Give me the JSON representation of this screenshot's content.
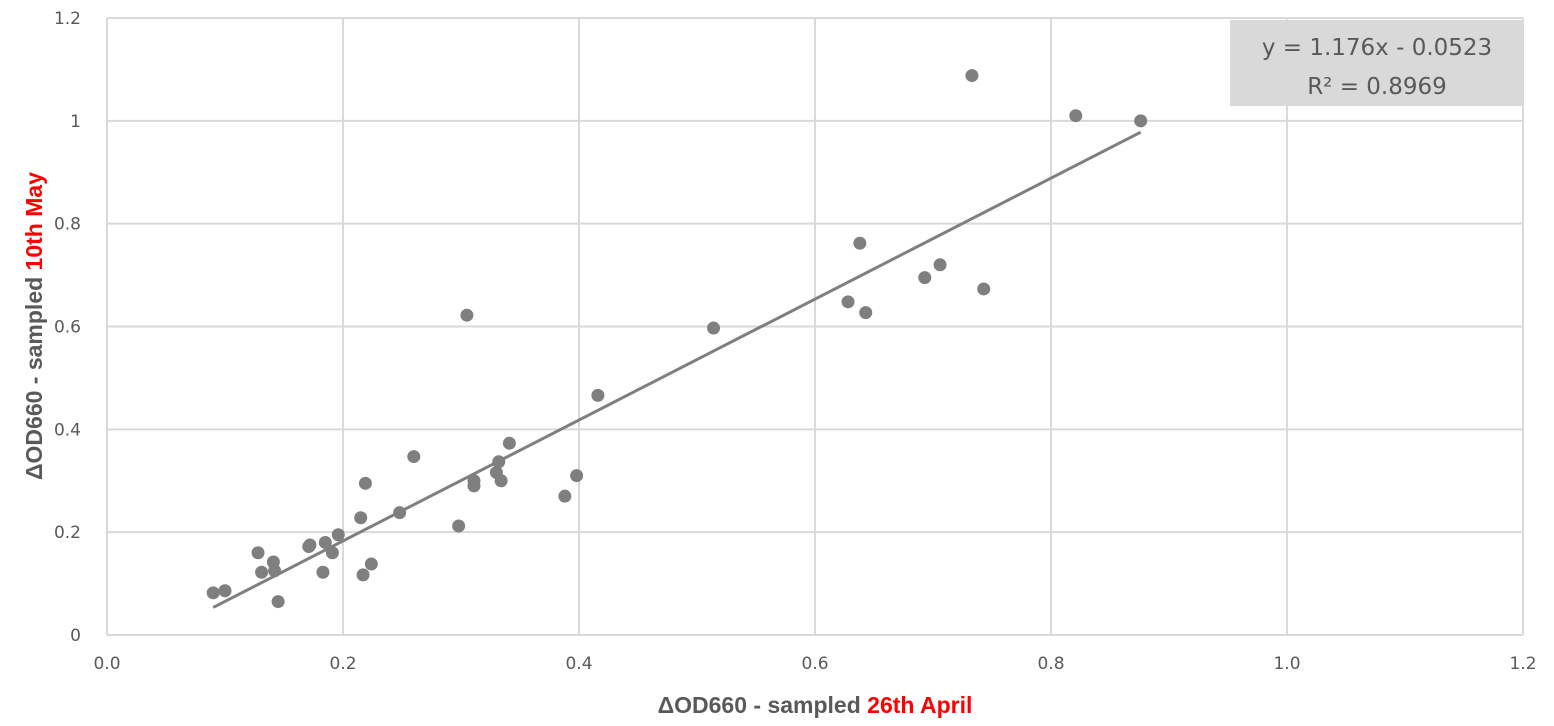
{
  "chart_data": {
    "type": "scatter",
    "xlabel": {
      "prefix": "ΔOD660 - sampled ",
      "highlight": "26th April"
    },
    "ylabel": {
      "prefix": "ΔOD660 - sampled ",
      "highlight": "10th May"
    },
    "xlim": [
      0,
      1.2
    ],
    "ylim": [
      0,
      1.2
    ],
    "x_ticks": [
      "0.0",
      "0.2",
      "0.4",
      "0.6",
      "0.8",
      "1.0",
      "1.2"
    ],
    "y_ticks": [
      "0",
      "0.2",
      "0.4",
      "0.6",
      "0.8",
      "1",
      "1.2"
    ],
    "grid": true,
    "colors": {
      "points": "#7f7f7f",
      "trendline": "#7f7f7f",
      "grid": "#d9d9d9",
      "highlight": "#ff0000",
      "equation_bg": "#d9d9d9"
    },
    "series": [
      {
        "x": [
          0.09,
          0.1,
          0.128,
          0.131,
          0.141,
          0.142,
          0.145,
          0.171,
          0.172,
          0.183,
          0.185,
          0.191,
          0.196,
          0.215,
          0.217,
          0.219,
          0.224,
          0.248,
          0.26,
          0.298,
          0.305,
          0.311,
          0.311,
          0.33,
          0.332,
          0.334,
          0.341,
          0.388,
          0.398,
          0.416,
          0.514,
          0.628,
          0.638,
          0.643,
          0.693,
          0.706,
          0.733,
          0.743,
          0.821,
          0.876
        ],
        "y": [
          0.082,
          0.086,
          0.16,
          0.122,
          0.142,
          0.125,
          0.065,
          0.172,
          0.175,
          0.122,
          0.18,
          0.16,
          0.195,
          0.228,
          0.117,
          0.295,
          0.138,
          0.238,
          0.347,
          0.212,
          0.622,
          0.3,
          0.29,
          0.316,
          0.337,
          0.3,
          0.373,
          0.27,
          0.31,
          0.466,
          0.597,
          0.648,
          0.762,
          0.627,
          0.695,
          0.72,
          1.088,
          0.673,
          1.01,
          1.0
        ]
      }
    ],
    "trendline": {
      "slope": 1.176,
      "intercept": -0.0523,
      "x_range": [
        0.09,
        0.876
      ],
      "equation": "y = 1.176x - 0.0523",
      "r_squared": "R² = 0.8969"
    }
  }
}
